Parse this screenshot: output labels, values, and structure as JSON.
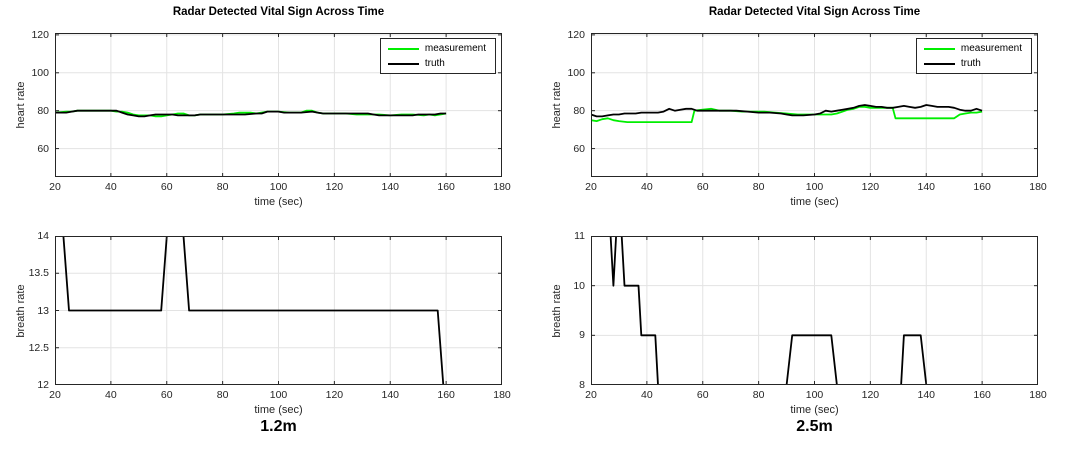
{
  "figure": {
    "background": "#ffffff",
    "colors": {
      "measurement": "#00ee00",
      "truth": "#000000",
      "grid": "#e3e3e3",
      "axis": "#262626",
      "tick_label": "#262626"
    }
  },
  "captions": {
    "left": "1.2m",
    "right": "2.5m"
  },
  "chart_data": [
    {
      "id": "heart-rate-1.2m",
      "type": "line",
      "title": "Radar Detected Vital Sign Across Time",
      "xlabel": "time (sec)",
      "ylabel": "heart rate",
      "xlim": [
        20,
        180
      ],
      "ylim": [
        45,
        121
      ],
      "xticks": [
        20,
        40,
        60,
        80,
        100,
        120,
        140,
        160,
        180
      ],
      "yticks": [
        60,
        80,
        100,
        120
      ],
      "grid": true,
      "legend": true,
      "legend_position": "top-right",
      "series": [
        {
          "name": "measurement",
          "color_key": "measurement",
          "points": [
            [
              20,
              79
            ],
            [
              24,
              79.5
            ],
            [
              26,
              79.5
            ],
            [
              28,
              80
            ],
            [
              32,
              80
            ],
            [
              36,
              80
            ],
            [
              40,
              80
            ],
            [
              42,
              79.5
            ],
            [
              44,
              79.5
            ],
            [
              46,
              79
            ],
            [
              48,
              78
            ],
            [
              50,
              77.5
            ],
            [
              52,
              77.5
            ],
            [
              54,
              77.5
            ],
            [
              56,
              77
            ],
            [
              58,
              77
            ],
            [
              60,
              77.5
            ],
            [
              62,
              78
            ],
            [
              64,
              78.5
            ],
            [
              66,
              78.5
            ],
            [
              68,
              77.5
            ],
            [
              70,
              77.5
            ],
            [
              72,
              78
            ],
            [
              76,
              78
            ],
            [
              80,
              78
            ],
            [
              84,
              78.5
            ],
            [
              86,
              79
            ],
            [
              90,
              79
            ],
            [
              92,
              78.5
            ],
            [
              96,
              79.5
            ],
            [
              100,
              79.5
            ],
            [
              104,
              79
            ],
            [
              108,
              79
            ],
            [
              110,
              80
            ],
            [
              112,
              80
            ],
            [
              114,
              79
            ],
            [
              116,
              78.5
            ],
            [
              120,
              78.5
            ],
            [
              124,
              78.5
            ],
            [
              128,
              78
            ],
            [
              132,
              78
            ],
            [
              136,
              78
            ],
            [
              140,
              77.5
            ],
            [
              144,
              78
            ],
            [
              148,
              78
            ],
            [
              152,
              77.5
            ],
            [
              154,
              78
            ],
            [
              156,
              77.5
            ],
            [
              158,
              78
            ],
            [
              160,
              78.5
            ]
          ]
        },
        {
          "name": "truth",
          "color_key": "truth",
          "points": [
            [
              20,
              79
            ],
            [
              24,
              79
            ],
            [
              26,
              79.5
            ],
            [
              28,
              80
            ],
            [
              32,
              80
            ],
            [
              36,
              80
            ],
            [
              40,
              80
            ],
            [
              42,
              80
            ],
            [
              44,
              79
            ],
            [
              46,
              78
            ],
            [
              48,
              77.5
            ],
            [
              50,
              77
            ],
            [
              52,
              77
            ],
            [
              54,
              77.5
            ],
            [
              56,
              78
            ],
            [
              58,
              78
            ],
            [
              60,
              78
            ],
            [
              62,
              78
            ],
            [
              64,
              77.5
            ],
            [
              66,
              77.5
            ],
            [
              68,
              77.5
            ],
            [
              70,
              77.5
            ],
            [
              72,
              78
            ],
            [
              76,
              78
            ],
            [
              80,
              78
            ],
            [
              84,
              78
            ],
            [
              88,
              78
            ],
            [
              92,
              78.5
            ],
            [
              94,
              78.5
            ],
            [
              96,
              79.5
            ],
            [
              98,
              79.5
            ],
            [
              100,
              79.5
            ],
            [
              102,
              79
            ],
            [
              104,
              79
            ],
            [
              108,
              79
            ],
            [
              112,
              79.5
            ],
            [
              114,
              79
            ],
            [
              116,
              78.5
            ],
            [
              120,
              78.5
            ],
            [
              124,
              78.5
            ],
            [
              128,
              78.5
            ],
            [
              132,
              78.5
            ],
            [
              134,
              78
            ],
            [
              136,
              77.5
            ],
            [
              140,
              77.5
            ],
            [
              144,
              77.5
            ],
            [
              148,
              77.5
            ],
            [
              150,
              78
            ],
            [
              152,
              78
            ],
            [
              156,
              78
            ],
            [
              158,
              78.5
            ],
            [
              160,
              78.5
            ]
          ]
        }
      ]
    },
    {
      "id": "heart-rate-2.5m",
      "type": "line",
      "title": "Radar Detected Vital Sign Across Time",
      "xlabel": "time (sec)",
      "ylabel": "heart rate",
      "xlim": [
        20,
        180
      ],
      "ylim": [
        45,
        121
      ],
      "xticks": [
        20,
        40,
        60,
        80,
        100,
        120,
        140,
        160,
        180
      ],
      "yticks": [
        60,
        80,
        100,
        120
      ],
      "grid": true,
      "legend": true,
      "legend_position": "top-right",
      "series": [
        {
          "name": "measurement",
          "color_key": "measurement",
          "points": [
            [
              20,
              75
            ],
            [
              22,
              74.5
            ],
            [
              24,
              75.5
            ],
            [
              26,
              76
            ],
            [
              28,
              75
            ],
            [
              30,
              74.5
            ],
            [
              33,
              74
            ],
            [
              56,
              74
            ],
            [
              57,
              80
            ],
            [
              60,
              80.5
            ],
            [
              63,
              81
            ],
            [
              66,
              80
            ],
            [
              70,
              80
            ],
            [
              74,
              79.5
            ],
            [
              78,
              79.5
            ],
            [
              82,
              79.5
            ],
            [
              86,
              79
            ],
            [
              90,
              78.5
            ],
            [
              94,
              78
            ],
            [
              100,
              78
            ],
            [
              106,
              78
            ],
            [
              108,
              78.5
            ],
            [
              110,
              79.5
            ],
            [
              112,
              80.5
            ],
            [
              114,
              81
            ],
            [
              116,
              82
            ],
            [
              118,
              82
            ],
            [
              120,
              81.5
            ],
            [
              124,
              81.5
            ],
            [
              128,
              81.5
            ],
            [
              129,
              76
            ],
            [
              132,
              76
            ],
            [
              150,
              76
            ],
            [
              152,
              78
            ],
            [
              154,
              78.5
            ],
            [
              156,
              79
            ],
            [
              158,
              79
            ],
            [
              160,
              79.5
            ]
          ]
        },
        {
          "name": "truth",
          "color_key": "truth",
          "points": [
            [
              20,
              78
            ],
            [
              22,
              77
            ],
            [
              24,
              77
            ],
            [
              26,
              77.5
            ],
            [
              28,
              78
            ],
            [
              30,
              78
            ],
            [
              32,
              78.5
            ],
            [
              36,
              78.5
            ],
            [
              38,
              79
            ],
            [
              42,
              79
            ],
            [
              44,
              79
            ],
            [
              46,
              79.5
            ],
            [
              48,
              81
            ],
            [
              50,
              80
            ],
            [
              52,
              80.5
            ],
            [
              54,
              81
            ],
            [
              56,
              81
            ],
            [
              58,
              80
            ],
            [
              60,
              80
            ],
            [
              64,
              80
            ],
            [
              68,
              80
            ],
            [
              72,
              80
            ],
            [
              76,
              79.5
            ],
            [
              80,
              79
            ],
            [
              84,
              79
            ],
            [
              88,
              78.5
            ],
            [
              90,
              78
            ],
            [
              92,
              77.5
            ],
            [
              96,
              77.5
            ],
            [
              100,
              78
            ],
            [
              102,
              78.5
            ],
            [
              104,
              80
            ],
            [
              106,
              79.5
            ],
            [
              108,
              80
            ],
            [
              110,
              80.5
            ],
            [
              112,
              81
            ],
            [
              114,
              81.5
            ],
            [
              116,
              82.5
            ],
            [
              118,
              83
            ],
            [
              120,
              82.5
            ],
            [
              122,
              82
            ],
            [
              124,
              82
            ],
            [
              126,
              81.5
            ],
            [
              128,
              81.5
            ],
            [
              130,
              82
            ],
            [
              132,
              82.5
            ],
            [
              134,
              82
            ],
            [
              136,
              81.5
            ],
            [
              138,
              82
            ],
            [
              140,
              83
            ],
            [
              142,
              82.5
            ],
            [
              144,
              82
            ],
            [
              148,
              82
            ],
            [
              150,
              81.5
            ],
            [
              152,
              80.5
            ],
            [
              154,
              80
            ],
            [
              156,
              80
            ],
            [
              158,
              81
            ],
            [
              160,
              80
            ]
          ]
        }
      ]
    },
    {
      "id": "breath-rate-1.2m",
      "type": "line",
      "title": "",
      "xlabel": "time (sec)",
      "ylabel": "breath rate",
      "xlim": [
        20,
        180
      ],
      "ylim": [
        12,
        14
      ],
      "xticks": [
        20,
        40,
        60,
        80,
        100,
        120,
        140,
        160,
        180
      ],
      "yticks": [
        12,
        12.5,
        13,
        13.5,
        14
      ],
      "grid": true,
      "legend": false,
      "series": [
        {
          "name": "breath rate",
          "color_key": "truth",
          "points": [
            [
              20,
              14
            ],
            [
              23,
              14
            ],
            [
              25,
              13
            ],
            [
              58,
              13
            ],
            [
              60,
              14
            ],
            [
              66,
              14
            ],
            [
              68,
              13
            ],
            [
              157,
              13
            ],
            [
              159,
              12
            ],
            [
              160,
              12
            ]
          ]
        }
      ]
    },
    {
      "id": "breath-rate-2.5m",
      "type": "line",
      "title": "",
      "xlabel": "time (sec)",
      "ylabel": "breath rate",
      "xlim": [
        20,
        180
      ],
      "ylim": [
        8,
        11
      ],
      "xticks": [
        20,
        40,
        60,
        80,
        100,
        120,
        140,
        160,
        180
      ],
      "yticks": [
        8,
        9,
        10,
        11
      ],
      "grid": true,
      "legend": false,
      "series": [
        {
          "name": "breath rate",
          "color_key": "truth",
          "points": [
            [
              20,
              11
            ],
            [
              27,
              11
            ],
            [
              28,
              10
            ],
            [
              29,
              11
            ],
            [
              31,
              11
            ],
            [
              32,
              10
            ],
            [
              37,
              10
            ],
            [
              38,
              9
            ],
            [
              43,
              9
            ],
            [
              44,
              8
            ],
            [
              90,
              8
            ],
            [
              92,
              9
            ],
            [
              106,
              9
            ],
            [
              108,
              8
            ],
            [
              131,
              8
            ],
            [
              132,
              9
            ],
            [
              138,
              9
            ],
            [
              140,
              8
            ],
            [
              160,
              8
            ]
          ]
        }
      ]
    }
  ]
}
